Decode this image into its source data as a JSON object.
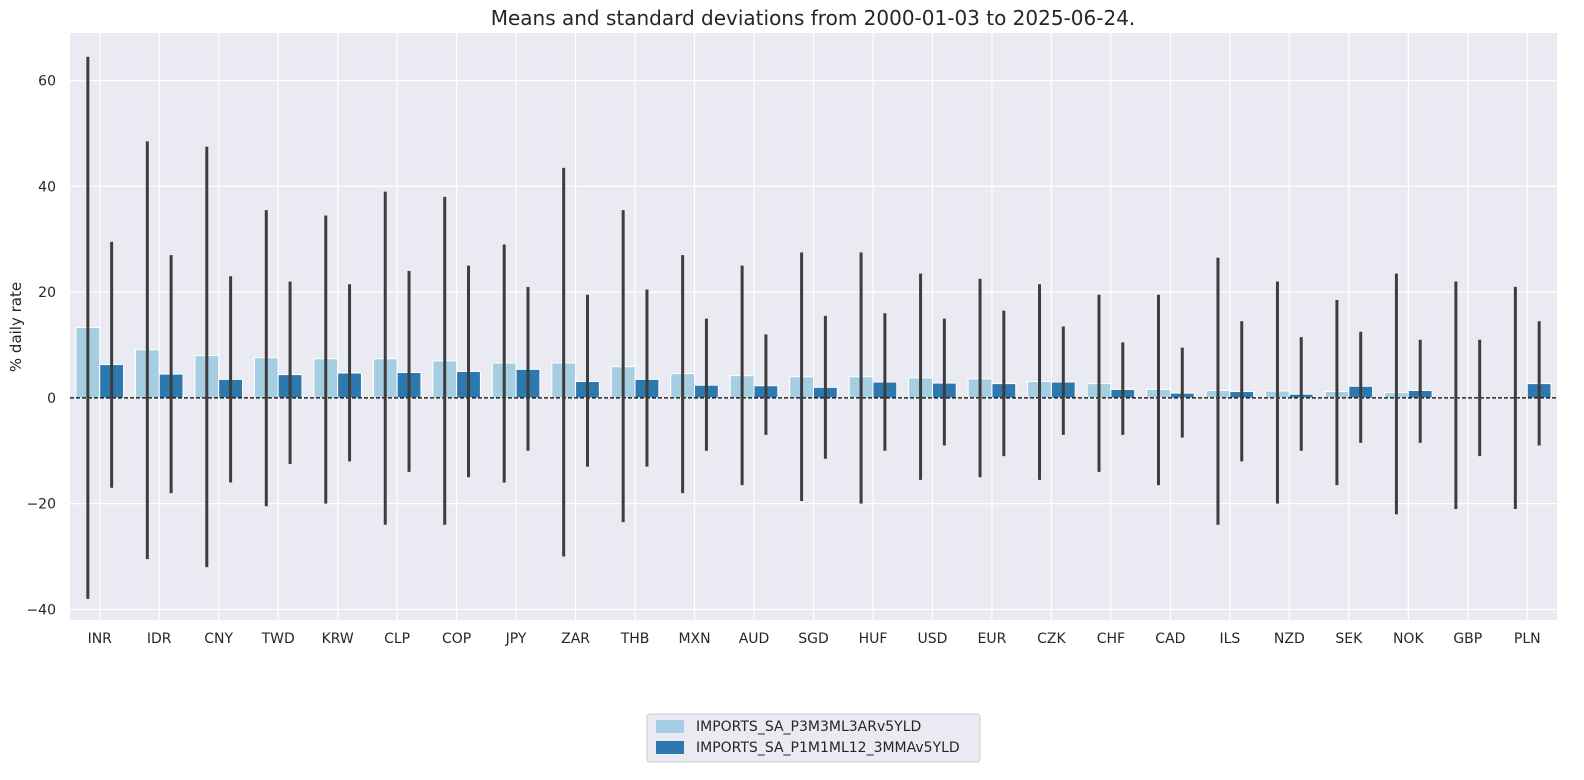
{
  "chart_data": {
    "type": "bar",
    "title": "Means and standard deviations from 2000-01-03 to 2025-06-24.",
    "xlabel": "",
    "ylabel": "% daily rate",
    "ylim": [
      -42,
      69
    ],
    "yticks": [
      -40,
      -20,
      0,
      20,
      40,
      60
    ],
    "grid": true,
    "legend_position": "bottom-center",
    "categories": [
      "INR",
      "IDR",
      "CNY",
      "TWD",
      "KRW",
      "CLP",
      "COP",
      "JPY",
      "ZAR",
      "THB",
      "MXN",
      "AUD",
      "SGD",
      "HUF",
      "USD",
      "EUR",
      "CZK",
      "CHF",
      "CAD",
      "ILS",
      "NZD",
      "SEK",
      "NOK",
      "GBP",
      "PLN"
    ],
    "series": [
      {
        "name": "IMPORTS_SA_P3M3ML3ARv5YLD",
        "color": "#a6cee3",
        "values": [
          13.3,
          9.1,
          8.0,
          7.6,
          7.4,
          7.4,
          7.0,
          6.6,
          6.6,
          5.9,
          4.6,
          4.2,
          4.0,
          4.0,
          3.8,
          3.6,
          3.1,
          2.7,
          1.6,
          1.4,
          1.3,
          1.2,
          1.0,
          0.0,
          0.0
        ],
        "err_low": [
          -38,
          -30.5,
          -32,
          -20.5,
          -20,
          -24,
          -24,
          -16,
          -30,
          -23.5,
          -18,
          -16.5,
          -19.5,
          -20,
          -15.5,
          -15,
          -15.5,
          -14,
          -16.5,
          -24,
          -20,
          -16.5,
          -22,
          -21,
          -21
        ],
        "err_high": [
          64.5,
          48.5,
          47.5,
          35.5,
          34.5,
          39,
          38,
          29,
          43.5,
          35.5,
          27,
          25,
          27.5,
          27.5,
          23.5,
          22.5,
          21.5,
          19.5,
          19.5,
          26.5,
          22,
          18.5,
          23.5,
          22,
          21
        ]
      },
      {
        "name": "IMPORTS_SA_P1M1ML12_3MMAv5YLD",
        "color": "#2e78b0",
        "values": [
          6.3,
          4.5,
          3.5,
          4.4,
          4.7,
          4.8,
          5.0,
          5.4,
          3.1,
          3.5,
          2.4,
          2.3,
          2.0,
          3.0,
          2.8,
          2.7,
          3.0,
          1.6,
          0.9,
          1.2,
          0.7,
          2.2,
          1.4,
          0.0,
          2.7
        ],
        "err_low": [
          -17,
          -18,
          -16,
          -12.5,
          -12,
          -14,
          -15,
          -10,
          -13,
          -13,
          -10,
          -7,
          -11.5,
          -10,
          -9,
          -11,
          -7,
          -7,
          -7.5,
          -12,
          -10,
          -8.5,
          -8.5,
          -11,
          -9
        ],
        "err_high": [
          29.5,
          27,
          23,
          22,
          21.5,
          24,
          25,
          21,
          19.5,
          20.5,
          15,
          12,
          15.5,
          16,
          15,
          16.5,
          13.5,
          10.5,
          9.5,
          14.5,
          11.5,
          12.5,
          11,
          11,
          14.5
        ]
      }
    ]
  },
  "colors": {
    "background": "#eaeaf2",
    "grid": "#ffffff",
    "error_bar": "#3d3d3d",
    "zero_line": "#000000"
  }
}
